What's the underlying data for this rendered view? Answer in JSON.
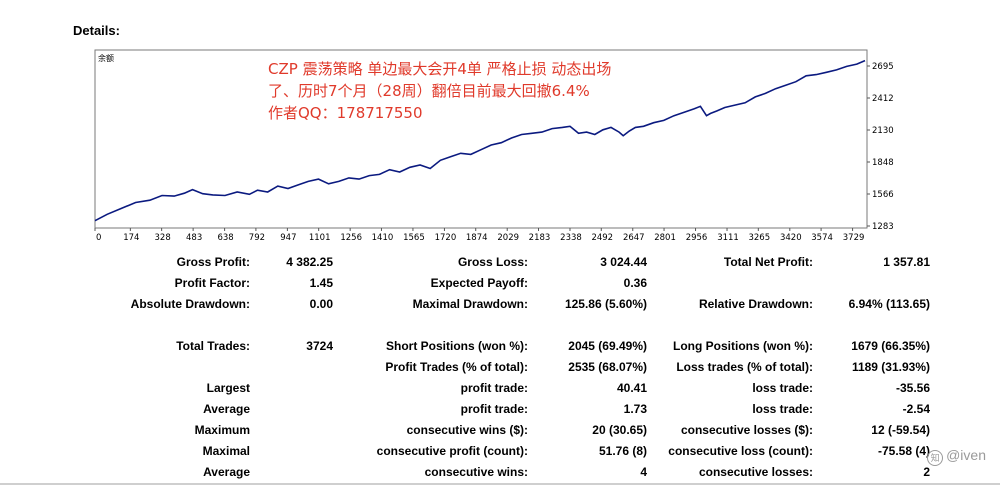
{
  "title": "Details:",
  "chart": {
    "legend_label": "余额",
    "annotation_lines": [
      "CZP 震荡策略 单边最大会开4单 严格止损  动态出场",
      "了、历时7个月（28周）翻倍目前最大回撤6.4%",
      "作者QQ：178717550"
    ],
    "line_color": "#0b1a80",
    "annotation_color": "#e03a2b"
  },
  "chart_data": {
    "type": "line",
    "x_ticks": [
      "0",
      "174",
      "328",
      "483",
      "638",
      "792",
      "947",
      "1101",
      "1256",
      "1410",
      "1565",
      "1720",
      "1874",
      "2029",
      "2183",
      "2338",
      "2492",
      "2647",
      "2801",
      "2956",
      "3111",
      "3265",
      "3420",
      "3574",
      "3729"
    ],
    "y_ticks": [
      "1283",
      "1566",
      "1848",
      "2130",
      "2412",
      "2695"
    ],
    "xlim": [
      0,
      3800
    ],
    "ylim": [
      1283,
      2800
    ],
    "series": [
      {
        "name": "余额",
        "x": [
          0,
          60,
          130,
          200,
          270,
          330,
          390,
          440,
          480,
          530,
          580,
          640,
          700,
          760,
          800,
          850,
          900,
          950,
          1000,
          1050,
          1100,
          1150,
          1200,
          1250,
          1300,
          1350,
          1400,
          1450,
          1500,
          1550,
          1600,
          1650,
          1700,
          1750,
          1800,
          1850,
          1900,
          1950,
          2000,
          2050,
          2100,
          2150,
          2200,
          2250,
          2300,
          2338,
          2380,
          2420,
          2460,
          2500,
          2540,
          2580,
          2600,
          2630,
          2660,
          2700,
          2750,
          2800,
          2850,
          2900,
          2950,
          2980,
          3010,
          3030,
          3060,
          3100,
          3150,
          3200,
          3250,
          3300,
          3350,
          3400,
          3450,
          3500,
          3550,
          3600,
          3650,
          3700,
          3750,
          3790
        ],
        "y": [
          1345,
          1400,
          1450,
          1500,
          1520,
          1560,
          1555,
          1580,
          1610,
          1575,
          1565,
          1560,
          1590,
          1570,
          1605,
          1590,
          1640,
          1620,
          1650,
          1680,
          1700,
          1660,
          1680,
          1710,
          1700,
          1730,
          1740,
          1780,
          1760,
          1800,
          1820,
          1790,
          1860,
          1890,
          1920,
          1910,
          1950,
          1990,
          2010,
          2050,
          2080,
          2090,
          2100,
          2130,
          2140,
          2150,
          2090,
          2100,
          2080,
          2120,
          2140,
          2100,
          2070,
          2110,
          2140,
          2150,
          2180,
          2200,
          2240,
          2270,
          2300,
          2320,
          2240,
          2260,
          2280,
          2310,
          2330,
          2350,
          2400,
          2430,
          2470,
          2500,
          2530,
          2580,
          2590,
          2610,
          2630,
          2660,
          2680,
          2710
        ]
      }
    ],
    "grid": false
  },
  "stats": {
    "gross_profit_label": "Gross Profit:",
    "gross_profit_value": "4 382.25",
    "gross_loss_label": "Gross Loss:",
    "gross_loss_value": "3 024.44",
    "total_net_profit_label": "Total Net Profit:",
    "total_net_profit_value": "1 357.81",
    "profit_factor_label": "Profit Factor:",
    "profit_factor_value": "1.45",
    "expected_payoff_label": "Expected Payoff:",
    "expected_payoff_value": "0.36",
    "absolute_drawdown_label": "Absolute Drawdown:",
    "absolute_drawdown_value": "0.00",
    "maximal_drawdown_label": "Maximal Drawdown:",
    "maximal_drawdown_value": "125.86 (5.60%)",
    "relative_drawdown_label": "Relative Drawdown:",
    "relative_drawdown_value": "6.94% (113.65)",
    "total_trades_label": "Total Trades:",
    "total_trades_value": "3724",
    "short_positions_label": "Short Positions (won %):",
    "short_positions_value": "2045 (69.49%)",
    "long_positions_label": "Long Positions (won %):",
    "long_positions_value": "1679 (66.35%)",
    "profit_trades_label": "Profit Trades (% of total):",
    "profit_trades_value": "2535 (68.07%)",
    "loss_trades_label": "Loss trades (% of total):",
    "loss_trades_value": "1189 (31.93%)",
    "largest_label": "Largest",
    "largest_profit_label": "profit trade:",
    "largest_profit_value": "40.41",
    "largest_loss_label": "loss trade:",
    "largest_loss_value": "-35.56",
    "average_label": "Average",
    "average_profit_label": "profit trade:",
    "average_profit_value": "1.73",
    "average_loss_label": "loss trade:",
    "average_loss_value": "-2.54",
    "maximum_label": "Maximum",
    "max_cons_wins_label": "consecutive wins ($):",
    "max_cons_wins_value": "20 (30.65)",
    "max_cons_losses_label": "consecutive losses ($):",
    "max_cons_losses_value": "12 (-59.54)",
    "maximal_label": "Maximal",
    "maximal_cons_profit_label": "consecutive profit (count):",
    "maximal_cons_profit_value": "51.76 (8)",
    "maximal_cons_loss_label": "consecutive loss (count):",
    "maximal_cons_loss_value": "-75.58 (4)",
    "average2_label": "Average",
    "avg_cons_wins_label": "consecutive wins:",
    "avg_cons_wins_value": "4",
    "avg_cons_losses_label": "consecutive losses:",
    "avg_cons_losses_value": "2"
  },
  "watermark": {
    "text": "@iven"
  }
}
